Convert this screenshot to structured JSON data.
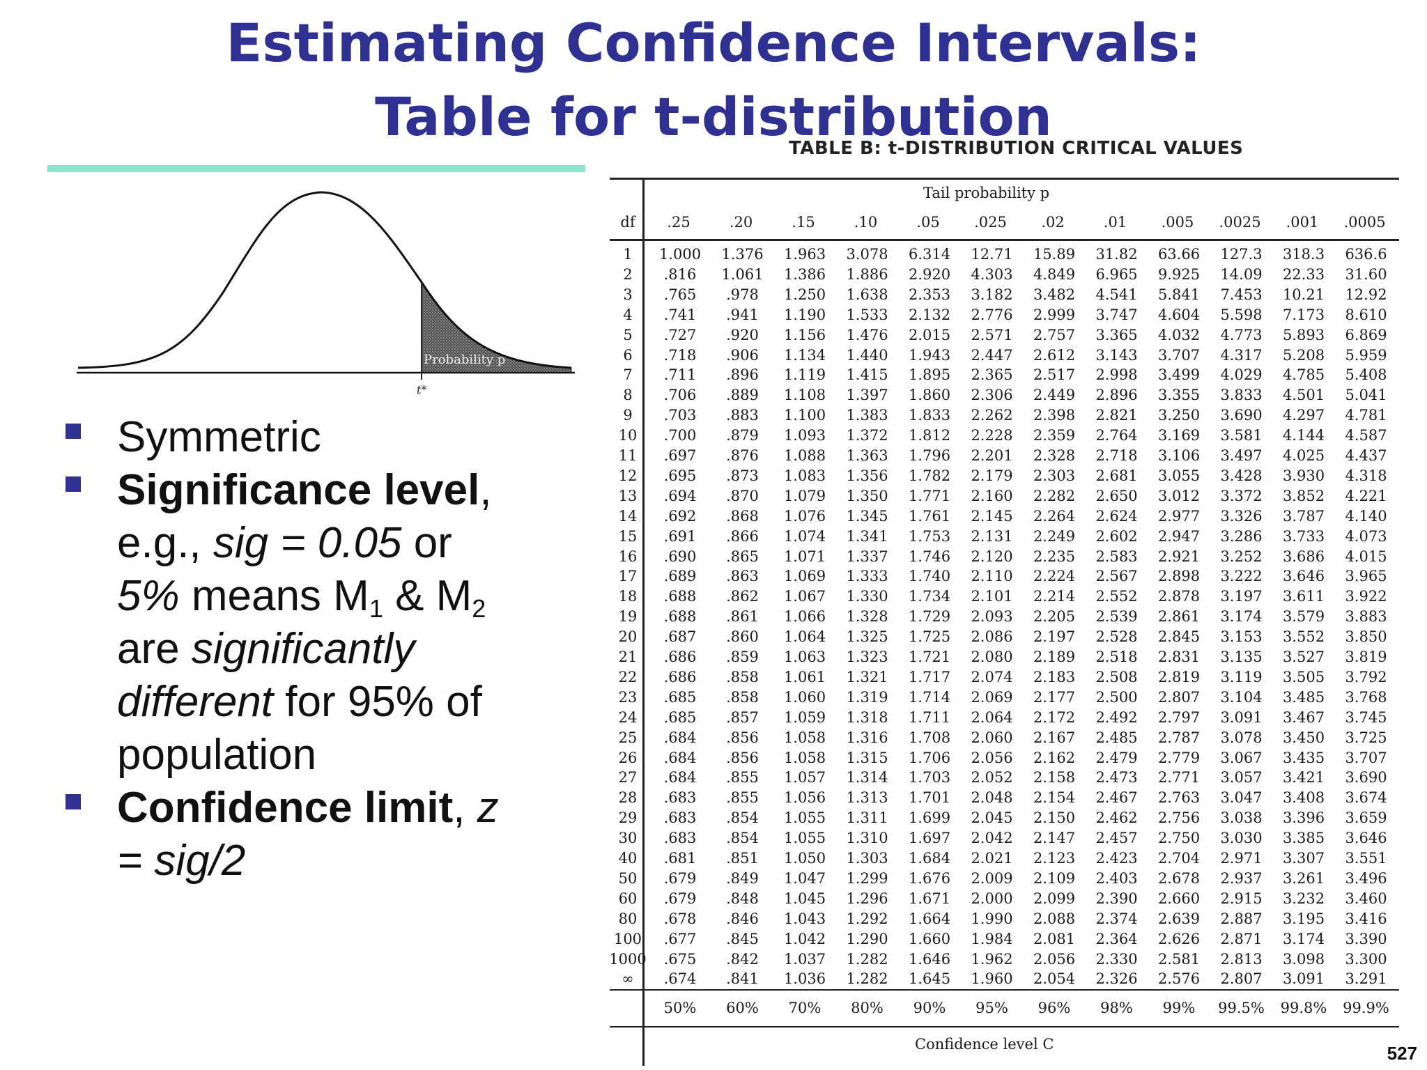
{
  "slide": {
    "title_line1": "Estimating Confidence Intervals:",
    "title_line2": "Table for t-distribution",
    "page_number": "527",
    "accent_color": "#2e3192",
    "rule_color": "#8ee3cf"
  },
  "figure": {
    "shaded_label": "Probability p",
    "tick_label": "t*"
  },
  "bullets": {
    "b1": "Symmetric",
    "b2_bold": "Significance level",
    "b2_a": ",",
    "b2_b": "e.g., ",
    "b2_c": "sig = 0.05",
    "b2_d": " or",
    "b2_e": "5%",
    "b2_f": " means M",
    "b2_sub1": "1",
    "b2_g": " & M",
    "b2_sub2": "2",
    "b2_h": "are ",
    "b2_i": "significantly",
    "b2_j": "different",
    "b2_k": " for 95% of",
    "b2_l": "population",
    "b3_bold": "Confidence limit",
    "b3_a": ", ",
    "b3_b": "z",
    "b3_c": "= sig/2"
  },
  "table": {
    "title": "TABLE B: t-DISTRIBUTION CRITICAL VALUES",
    "tail_label": "Tail probability p",
    "df_label": "df",
    "conf_label": "Confidence level C",
    "p_headers": [
      ".25",
      ".20",
      ".15",
      ".10",
      ".05",
      ".025",
      ".02",
      ".01",
      ".005",
      ".0025",
      ".001",
      ".0005"
    ],
    "confidence": [
      "50%",
      "60%",
      "70%",
      "80%",
      "90%",
      "95%",
      "96%",
      "98%",
      "99%",
      "99.5%",
      "99.8%",
      "99.9%"
    ],
    "rows": [
      [
        "1",
        "1.000",
        "1.376",
        "1.963",
        "3.078",
        "6.314",
        "12.71",
        "15.89",
        "31.82",
        "63.66",
        "127.3",
        "318.3",
        "636.6"
      ],
      [
        "2",
        ".816",
        "1.061",
        "1.386",
        "1.886",
        "2.920",
        "4.303",
        "4.849",
        "6.965",
        "9.925",
        "14.09",
        "22.33",
        "31.60"
      ],
      [
        "3",
        ".765",
        ".978",
        "1.250",
        "1.638",
        "2.353",
        "3.182",
        "3.482",
        "4.541",
        "5.841",
        "7.453",
        "10.21",
        "12.92"
      ],
      [
        "4",
        ".741",
        ".941",
        "1.190",
        "1.533",
        "2.132",
        "2.776",
        "2.999",
        "3.747",
        "4.604",
        "5.598",
        "7.173",
        "8.610"
      ],
      [
        "5",
        ".727",
        ".920",
        "1.156",
        "1.476",
        "2.015",
        "2.571",
        "2.757",
        "3.365",
        "4.032",
        "4.773",
        "5.893",
        "6.869"
      ],
      [
        "6",
        ".718",
        ".906",
        "1.134",
        "1.440",
        "1.943",
        "2.447",
        "2.612",
        "3.143",
        "3.707",
        "4.317",
        "5.208",
        "5.959"
      ],
      [
        "7",
        ".711",
        ".896",
        "1.119",
        "1.415",
        "1.895",
        "2.365",
        "2.517",
        "2.998",
        "3.499",
        "4.029",
        "4.785",
        "5.408"
      ],
      [
        "8",
        ".706",
        ".889",
        "1.108",
        "1.397",
        "1.860",
        "2.306",
        "2.449",
        "2.896",
        "3.355",
        "3.833",
        "4.501",
        "5.041"
      ],
      [
        "9",
        ".703",
        ".883",
        "1.100",
        "1.383",
        "1.833",
        "2.262",
        "2.398",
        "2.821",
        "3.250",
        "3.690",
        "4.297",
        "4.781"
      ],
      [
        "10",
        ".700",
        ".879",
        "1.093",
        "1.372",
        "1.812",
        "2.228",
        "2.359",
        "2.764",
        "3.169",
        "3.581",
        "4.144",
        "4.587"
      ],
      [
        "11",
        ".697",
        ".876",
        "1.088",
        "1.363",
        "1.796",
        "2.201",
        "2.328",
        "2.718",
        "3.106",
        "3.497",
        "4.025",
        "4.437"
      ],
      [
        "12",
        ".695",
        ".873",
        "1.083",
        "1.356",
        "1.782",
        "2.179",
        "2.303",
        "2.681",
        "3.055",
        "3.428",
        "3.930",
        "4.318"
      ],
      [
        "13",
        ".694",
        ".870",
        "1.079",
        "1.350",
        "1.771",
        "2.160",
        "2.282",
        "2.650",
        "3.012",
        "3.372",
        "3.852",
        "4.221"
      ],
      [
        "14",
        ".692",
        ".868",
        "1.076",
        "1.345",
        "1.761",
        "2.145",
        "2.264",
        "2.624",
        "2.977",
        "3.326",
        "3.787",
        "4.140"
      ],
      [
        "15",
        ".691",
        ".866",
        "1.074",
        "1.341",
        "1.753",
        "2.131",
        "2.249",
        "2.602",
        "2.947",
        "3.286",
        "3.733",
        "4.073"
      ],
      [
        "16",
        ".690",
        ".865",
        "1.071",
        "1.337",
        "1.746",
        "2.120",
        "2.235",
        "2.583",
        "2.921",
        "3.252",
        "3.686",
        "4.015"
      ],
      [
        "17",
        ".689",
        ".863",
        "1.069",
        "1.333",
        "1.740",
        "2.110",
        "2.224",
        "2.567",
        "2.898",
        "3.222",
        "3.646",
        "3.965"
      ],
      [
        "18",
        ".688",
        ".862",
        "1.067",
        "1.330",
        "1.734",
        "2.101",
        "2.214",
        "2.552",
        "2.878",
        "3.197",
        "3.611",
        "3.922"
      ],
      [
        "19",
        ".688",
        ".861",
        "1.066",
        "1.328",
        "1.729",
        "2.093",
        "2.205",
        "2.539",
        "2.861",
        "3.174",
        "3.579",
        "3.883"
      ],
      [
        "20",
        ".687",
        ".860",
        "1.064",
        "1.325",
        "1.725",
        "2.086",
        "2.197",
        "2.528",
        "2.845",
        "3.153",
        "3.552",
        "3.850"
      ],
      [
        "21",
        ".686",
        ".859",
        "1.063",
        "1.323",
        "1.721",
        "2.080",
        "2.189",
        "2.518",
        "2.831",
        "3.135",
        "3.527",
        "3.819"
      ],
      [
        "22",
        ".686",
        ".858",
        "1.061",
        "1.321",
        "1.717",
        "2.074",
        "2.183",
        "2.508",
        "2.819",
        "3.119",
        "3.505",
        "3.792"
      ],
      [
        "23",
        ".685",
        ".858",
        "1.060",
        "1.319",
        "1.714",
        "2.069",
        "2.177",
        "2.500",
        "2.807",
        "3.104",
        "3.485",
        "3.768"
      ],
      [
        "24",
        ".685",
        ".857",
        "1.059",
        "1.318",
        "1.711",
        "2.064",
        "2.172",
        "2.492",
        "2.797",
        "3.091",
        "3.467",
        "3.745"
      ],
      [
        "25",
        ".684",
        ".856",
        "1.058",
        "1.316",
        "1.708",
        "2.060",
        "2.167",
        "2.485",
        "2.787",
        "3.078",
        "3.450",
        "3.725"
      ],
      [
        "26",
        ".684",
        ".856",
        "1.058",
        "1.315",
        "1.706",
        "2.056",
        "2.162",
        "2.479",
        "2.779",
        "3.067",
        "3.435",
        "3.707"
      ],
      [
        "27",
        ".684",
        ".855",
        "1.057",
        "1.314",
        "1.703",
        "2.052",
        "2.158",
        "2.473",
        "2.771",
        "3.057",
        "3.421",
        "3.690"
      ],
      [
        "28",
        ".683",
        ".855",
        "1.056",
        "1.313",
        "1.701",
        "2.048",
        "2.154",
        "2.467",
        "2.763",
        "3.047",
        "3.408",
        "3.674"
      ],
      [
        "29",
        ".683",
        ".854",
        "1.055",
        "1.311",
        "1.699",
        "2.045",
        "2.150",
        "2.462",
        "2.756",
        "3.038",
        "3.396",
        "3.659"
      ],
      [
        "30",
        ".683",
        ".854",
        "1.055",
        "1.310",
        "1.697",
        "2.042",
        "2.147",
        "2.457",
        "2.750",
        "3.030",
        "3.385",
        "3.646"
      ],
      [
        "40",
        ".681",
        ".851",
        "1.050",
        "1.303",
        "1.684",
        "2.021",
        "2.123",
        "2.423",
        "2.704",
        "2.971",
        "3.307",
        "3.551"
      ],
      [
        "50",
        ".679",
        ".849",
        "1.047",
        "1.299",
        "1.676",
        "2.009",
        "2.109",
        "2.403",
        "2.678",
        "2.937",
        "3.261",
        "3.496"
      ],
      [
        "60",
        ".679",
        ".848",
        "1.045",
        "1.296",
        "1.671",
        "2.000",
        "2.099",
        "2.390",
        "2.660",
        "2.915",
        "3.232",
        "3.460"
      ],
      [
        "80",
        ".678",
        ".846",
        "1.043",
        "1.292",
        "1.664",
        "1.990",
        "2.088",
        "2.374",
        "2.639",
        "2.887",
        "3.195",
        "3.416"
      ],
      [
        "100",
        ".677",
        ".845",
        "1.042",
        "1.290",
        "1.660",
        "1.984",
        "2.081",
        "2.364",
        "2.626",
        "2.871",
        "3.174",
        "3.390"
      ],
      [
        "1000",
        ".675",
        ".842",
        "1.037",
        "1.282",
        "1.646",
        "1.962",
        "2.056",
        "2.330",
        "2.581",
        "2.813",
        "3.098",
        "3.300"
      ],
      [
        "∞",
        ".674",
        ".841",
        "1.036",
        "1.282",
        "1.645",
        "1.960",
        "2.054",
        "2.326",
        "2.576",
        "2.807",
        "3.091",
        "3.291"
      ]
    ]
  }
}
